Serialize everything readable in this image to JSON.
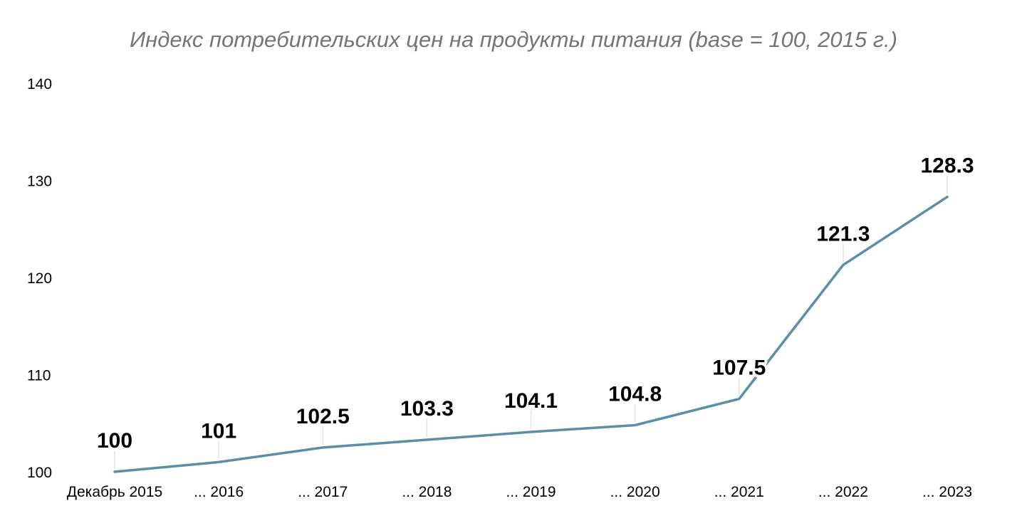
{
  "chart_data": {
    "type": "line",
    "title": "Индекс потребительских цен на продукты питания (base = 100, 2015 г.)",
    "xlabel": "",
    "ylabel": "",
    "categories": [
      "Декабрь 2015",
      "... 2016",
      "... 2017",
      "... 2018",
      "... 2019",
      "... 2020",
      "... 2021",
      "... 2022",
      "... 2023"
    ],
    "series": [
      {
        "values": [
          100,
          101,
          102.5,
          103.3,
          104.1,
          104.8,
          107.5,
          121.3,
          128.3
        ],
        "labels": [
          "100",
          "101",
          "102.5",
          "103.3",
          "104.1",
          "104.8",
          "107.5",
          "121.3",
          "128.3"
        ]
      }
    ],
    "ylim": [
      100,
      140
    ],
    "yticks": [
      100,
      110,
      120,
      130,
      140
    ],
    "ytick_labels": [
      "100",
      "110",
      "120",
      "130",
      "140"
    ],
    "grid": false,
    "legend": "none",
    "line_color": "#5a8fa8"
  }
}
